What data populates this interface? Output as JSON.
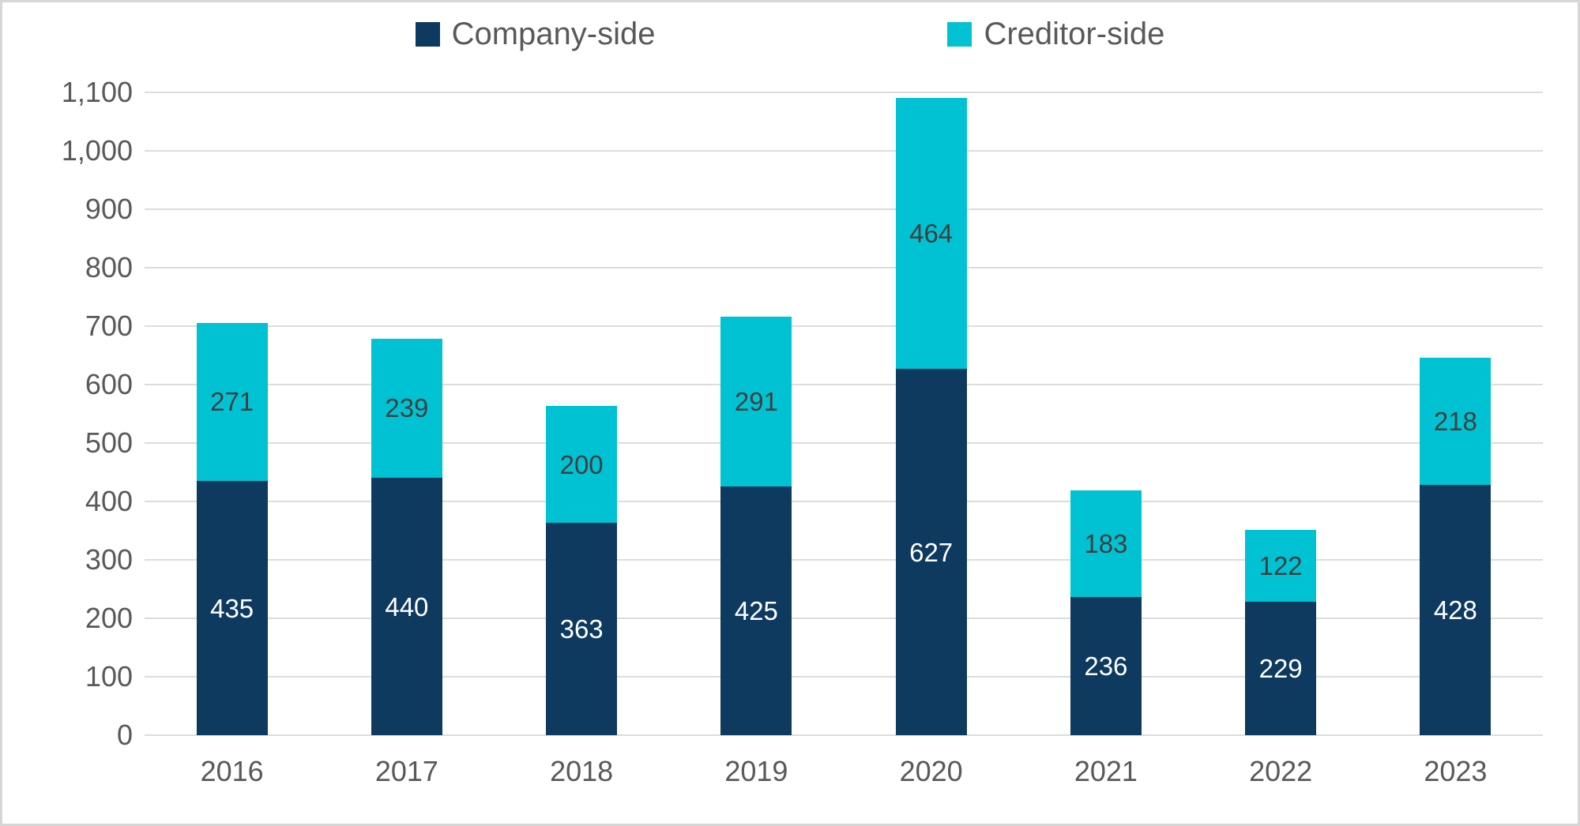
{
  "legend": [
    {
      "label": "Company-side",
      "color": "#0e3a5f"
    },
    {
      "label": "Creditor-side",
      "color": "#00c2d3"
    }
  ],
  "chart_data": {
    "type": "bar",
    "stacked": true,
    "title": "",
    "xlabel": "",
    "ylabel": "",
    "categories": [
      "2016",
      "2017",
      "2018",
      "2019",
      "2020",
      "2021",
      "2022",
      "2023"
    ],
    "series": [
      {
        "name": "Company-side",
        "color": "#0e3a5f",
        "label_color": "#ffffff",
        "values": [
          435,
          440,
          363,
          425,
          627,
          236,
          229,
          428
        ]
      },
      {
        "name": "Creditor-side",
        "color": "#00c2d3",
        "label_color": "#3f3f3f",
        "values": [
          271,
          239,
          200,
          291,
          464,
          183,
          122,
          218
        ]
      }
    ],
    "totals": [
      706,
      679,
      563,
      716,
      1091,
      419,
      351,
      646
    ],
    "ylim": [
      0,
      1100
    ],
    "ytick_step": 100,
    "ytick_labels": [
      "0",
      "100",
      "200",
      "300",
      "400",
      "500",
      "600",
      "700",
      "800",
      "900",
      "1,000",
      "1,100"
    ],
    "grid": "horizontal",
    "gridline_color": "#dcdcdc",
    "axis_text_color": "#595959",
    "legend_position": "top-center",
    "data_labels": "center-of-segment"
  }
}
